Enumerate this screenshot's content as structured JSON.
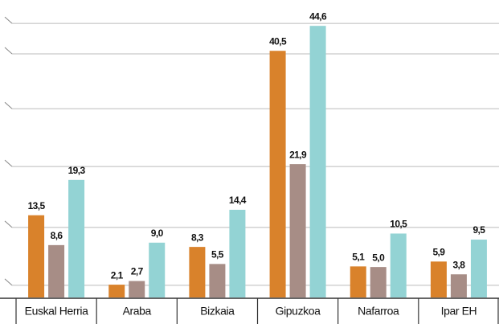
{
  "chart_data": {
    "type": "bar",
    "categories": [
      "Euskal Herria",
      "Araba",
      "Bizkaia",
      "Gipuzkoa",
      "Nafarroa",
      "Ipar EH"
    ],
    "series": [
      {
        "color": "#d9822b",
        "values": [
          13.5,
          2.1,
          8.3,
          40.5,
          5.1,
          5.9
        ],
        "value_labels": [
          "13,5",
          "2,1",
          "8,3",
          "40,5",
          "5,1",
          "5,9"
        ]
      },
      {
        "color": "#a78d86",
        "values": [
          8.6,
          2.7,
          5.5,
          21.9,
          5.0,
          3.8
        ],
        "value_labels": [
          "8,6",
          "2,7",
          "5,5",
          "21,9",
          "5,0",
          "3,8"
        ]
      },
      {
        "color": "#93d3d4",
        "values": [
          19.3,
          9.0,
          14.4,
          44.6,
          10.5,
          9.5
        ],
        "value_labels": [
          "19,3",
          "9,0",
          "14,4",
          "44,6",
          "10,5",
          "9,5"
        ]
      }
    ],
    "ylim": [
      0,
      47
    ],
    "yticks": [
      2,
      11.5,
      21.5,
      31,
      40,
      45
    ],
    "grid": true
  }
}
